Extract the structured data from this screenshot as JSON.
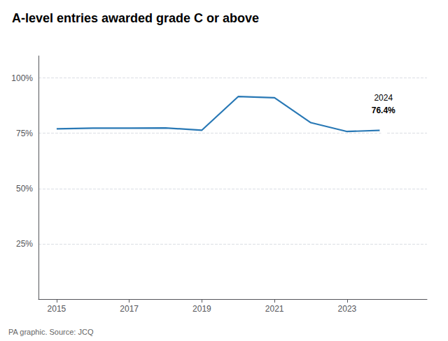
{
  "chart_data": {
    "type": "line",
    "title": "A-level entries awarded grade C or above",
    "x": [
      2015,
      2016,
      2017,
      2018,
      2019,
      2020,
      2021,
      2022,
      2023,
      2024
    ],
    "values": [
      77.0,
      77.3,
      77.3,
      77.4,
      76.4,
      91.6,
      91.1,
      79.8,
      75.8,
      76.4
    ],
    "color": "#2878b5",
    "xlim": [
      2014.5,
      2025.2
    ],
    "xticks": [
      2015,
      2017,
      2019,
      2021,
      2023
    ],
    "ylim": [
      0,
      110
    ],
    "yticks": [
      {
        "value": 25,
        "label": "25%"
      },
      {
        "value": 50,
        "label": "50%"
      },
      {
        "value": 75,
        "label": "75%"
      },
      {
        "value": 100,
        "label": "100%"
      }
    ],
    "grid": true,
    "annotations": [
      {
        "x": 2024,
        "text": "2024"
      },
      {
        "x": 2024,
        "text": "76.4%"
      }
    ],
    "footer": "PA graphic. Source: JCQ"
  }
}
